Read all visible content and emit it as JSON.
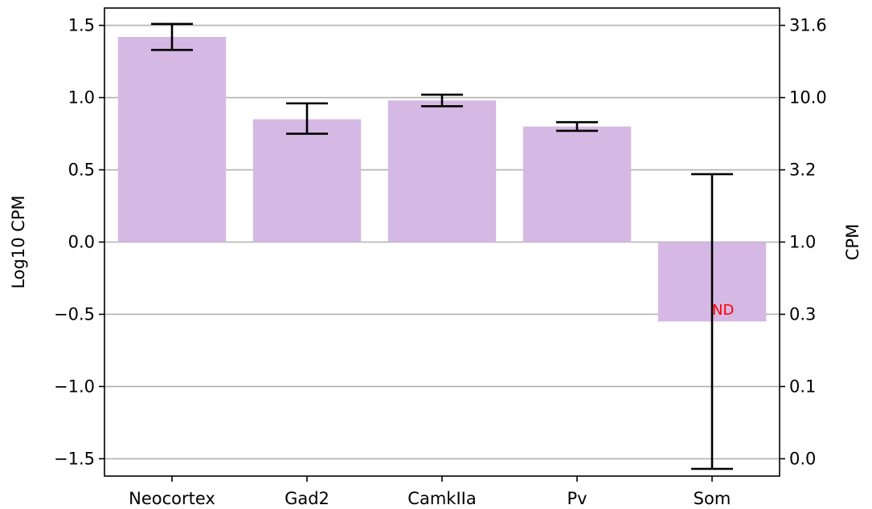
{
  "chart_data": {
    "type": "bar",
    "categories": [
      "Neocortex",
      "Gad2",
      "CamkIIa",
      "Pv",
      "Som"
    ],
    "values": [
      1.42,
      0.85,
      0.98,
      0.8,
      -0.55
    ],
    "error_bars": [
      {
        "low": 1.33,
        "high": 1.51
      },
      {
        "low": 0.75,
        "high": 0.96
      },
      {
        "low": 0.94,
        "high": 1.02
      },
      {
        "low": 0.77,
        "high": 0.83
      },
      {
        "low": -1.57,
        "high": 0.47
      }
    ],
    "annotations": [
      {
        "category": "Som",
        "text": "ND",
        "y": -0.47,
        "color": "#ff0000"
      }
    ],
    "bar_color": "#d5b8e3",
    "errorbar_color": "#000000",
    "ylabel": "Log10 CPM",
    "ylabel_right": "CPM",
    "ylim": [
      -1.62,
      1.62
    ],
    "yticks": [
      1.5,
      1.0,
      0.5,
      0.0,
      -0.5,
      -1.0,
      -1.5
    ],
    "ytick_labels": [
      "1.5",
      "1.0",
      "0.5",
      "0.0",
      "−0.5",
      "−1.0",
      "−1.5"
    ],
    "yticks_right_labels": [
      "31.6",
      "10.0",
      "3.2",
      "1.0",
      "0.3",
      "0.1",
      "0.0"
    ],
    "grid": "horizontal"
  }
}
